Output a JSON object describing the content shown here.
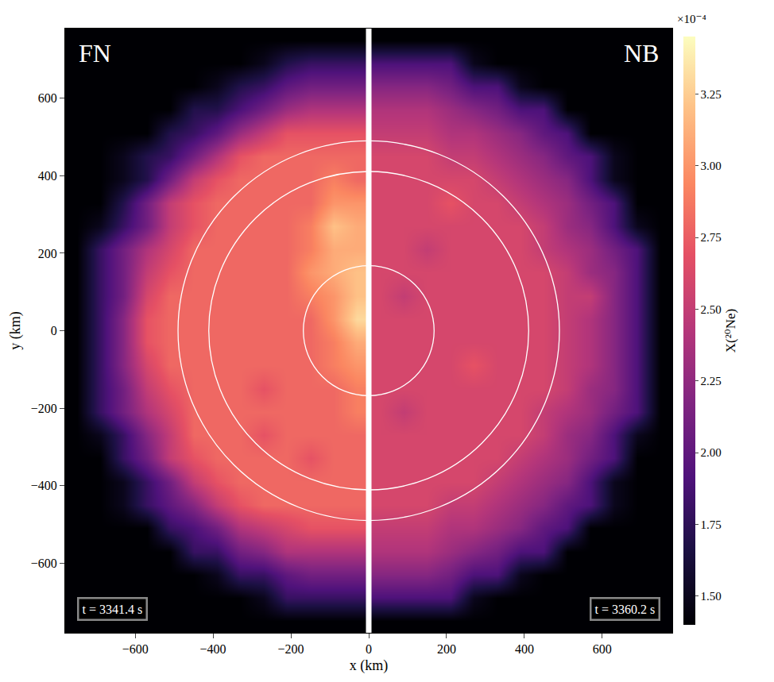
{
  "chart_data": {
    "type": "heatmap",
    "x_label": "x (km)",
    "y_label": "y (km)",
    "xlim": [
      -780,
      780
    ],
    "ylim": [
      -780,
      780
    ],
    "xticks": [
      -600,
      -400,
      -200,
      0,
      200,
      400,
      600
    ],
    "yticks": [
      -600,
      -400,
      -200,
      0,
      200,
      400,
      600
    ],
    "y": [
      -750,
      -690,
      -630,
      -570,
      -510,
      -450,
      -390,
      -330,
      -270,
      -210,
      -150,
      -90,
      -30,
      30,
      90,
      150,
      210,
      270,
      330,
      390,
      450,
      510,
      570,
      630,
      690,
      750
    ],
    "panels": [
      {
        "label": "FN",
        "time_label": "t = 3341.4 s",
        "x": [
          -750,
          -690,
          -630,
          -570,
          -510,
          -450,
          -390,
          -330,
          -270,
          -210,
          -150,
          -90,
          -30
        ],
        "cells": [
          [
            1.4,
            1.4,
            1.4,
            1.4,
            1.4,
            1.4,
            1.4,
            1.4,
            1.4,
            1.4,
            1.4,
            1.4,
            1.4
          ],
          [
            1.4,
            1.4,
            1.4,
            1.4,
            1.4,
            1.4,
            1.4,
            1.4,
            1.5,
            1.8,
            1.8,
            1.8,
            1.8
          ],
          [
            1.4,
            1.4,
            1.4,
            1.4,
            1.4,
            1.4,
            1.5,
            1.8,
            1.8,
            2.0,
            2.1,
            2.1,
            2.1
          ],
          [
            1.4,
            1.4,
            1.4,
            1.4,
            1.4,
            1.8,
            1.8,
            2.1,
            2.2,
            2.4,
            2.4,
            2.4,
            2.4
          ],
          [
            1.4,
            1.4,
            1.4,
            1.4,
            1.8,
            1.9,
            2.1,
            2.4,
            2.5,
            2.6,
            2.7,
            2.7,
            2.7
          ],
          [
            1.4,
            1.4,
            1.5,
            1.8,
            2.0,
            2.2,
            2.5,
            2.7,
            2.8,
            2.8,
            2.8,
            2.8,
            2.8
          ],
          [
            1.4,
            1.4,
            1.5,
            1.8,
            2.1,
            2.5,
            2.7,
            2.8,
            2.8,
            2.8,
            2.8,
            2.8,
            2.8
          ],
          [
            1.4,
            1.4,
            1.8,
            2.1,
            2.5,
            2.7,
            2.8,
            2.8,
            2.8,
            2.8,
            2.7,
            2.8,
            2.8
          ],
          [
            1.4,
            1.5,
            1.8,
            2.2,
            2.5,
            2.8,
            2.8,
            2.8,
            2.7,
            2.8,
            2.8,
            2.8,
            2.8
          ],
          [
            1.4,
            1.8,
            2.1,
            2.4,
            2.6,
            2.8,
            2.8,
            2.8,
            2.8,
            2.8,
            2.8,
            2.8,
            2.9
          ],
          [
            1.4,
            1.8,
            2.1,
            2.5,
            2.7,
            2.8,
            2.8,
            2.8,
            2.7,
            2.8,
            2.8,
            2.8,
            2.9
          ],
          [
            1.4,
            1.8,
            2.2,
            2.6,
            2.8,
            2.8,
            2.8,
            2.8,
            2.8,
            2.8,
            2.8,
            2.9,
            3.0
          ],
          [
            1.4,
            1.8,
            2.2,
            2.7,
            2.8,
            2.8,
            2.8,
            2.8,
            2.8,
            2.8,
            2.8,
            2.9,
            3.1
          ],
          [
            1.4,
            1.8,
            2.2,
            2.7,
            2.8,
            2.8,
            2.8,
            2.8,
            2.8,
            2.8,
            2.8,
            3.0,
            3.3
          ],
          [
            1.4,
            1.8,
            2.1,
            2.6,
            2.8,
            2.8,
            2.8,
            2.8,
            2.8,
            2.8,
            2.9,
            3.0,
            3.2
          ],
          [
            1.4,
            1.8,
            2.1,
            2.5,
            2.7,
            2.8,
            2.8,
            2.8,
            2.8,
            2.8,
            3.0,
            3.1,
            3.2
          ],
          [
            1.4,
            1.8,
            2.1,
            2.4,
            2.6,
            2.8,
            2.8,
            2.8,
            2.8,
            2.8,
            2.9,
            3.1,
            3.1
          ],
          [
            1.4,
            1.5,
            1.8,
            2.1,
            2.5,
            2.7,
            2.8,
            2.8,
            2.8,
            2.8,
            2.9,
            3.2,
            3.1
          ],
          [
            1.4,
            1.4,
            1.7,
            2.1,
            2.5,
            2.7,
            2.8,
            2.8,
            2.8,
            2.8,
            2.8,
            3.0,
            3.0
          ],
          [
            1.4,
            1.4,
            1.5,
            1.7,
            2.1,
            2.5,
            2.7,
            2.8,
            2.8,
            2.8,
            2.8,
            2.9,
            2.8
          ],
          [
            1.4,
            1.4,
            1.5,
            1.7,
            1.8,
            2.1,
            2.4,
            2.7,
            2.8,
            2.8,
            2.8,
            2.8,
            2.8
          ],
          [
            1.4,
            1.4,
            1.4,
            1.4,
            1.7,
            1.8,
            2.0,
            2.3,
            2.5,
            2.7,
            2.7,
            2.7,
            2.7
          ],
          [
            1.4,
            1.4,
            1.4,
            1.4,
            1.4,
            1.7,
            1.7,
            1.9,
            2.1,
            2.3,
            2.4,
            2.4,
            2.4
          ],
          [
            1.4,
            1.4,
            1.4,
            1.4,
            1.4,
            1.4,
            1.5,
            1.7,
            1.8,
            2.0,
            2.1,
            2.1,
            2.1
          ],
          [
            1.4,
            1.4,
            1.4,
            1.4,
            1.4,
            1.4,
            1.4,
            1.4,
            1.5,
            1.7,
            1.8,
            1.8,
            1.8
          ],
          [
            1.4,
            1.4,
            1.4,
            1.4,
            1.4,
            1.4,
            1.4,
            1.4,
            1.4,
            1.4,
            1.4,
            1.4,
            1.4
          ]
        ]
      },
      {
        "label": "NB",
        "time_label": "t = 3360.2 s",
        "x": [
          30,
          90,
          150,
          210,
          270,
          330,
          390,
          450,
          510,
          570,
          630,
          690,
          750
        ],
        "cells": [
          [
            1.4,
            1.4,
            1.4,
            1.4,
            1.4,
            1.4,
            1.4,
            1.4,
            1.4,
            1.4,
            1.4,
            1.4,
            1.4
          ],
          [
            1.9,
            1.9,
            1.9,
            1.9,
            1.5,
            1.4,
            1.4,
            1.4,
            1.4,
            1.4,
            1.4,
            1.4,
            1.4
          ],
          [
            2.2,
            2.2,
            2.2,
            2.1,
            1.9,
            1.9,
            1.5,
            1.4,
            1.4,
            1.4,
            1.4,
            1.4,
            1.4
          ],
          [
            2.4,
            2.4,
            2.4,
            2.3,
            2.2,
            2.1,
            1.9,
            1.9,
            1.4,
            1.4,
            1.4,
            1.4,
            1.4
          ],
          [
            2.5,
            2.5,
            2.5,
            2.4,
            2.4,
            2.3,
            2.2,
            2.0,
            1.9,
            1.4,
            1.4,
            1.4,
            1.4
          ],
          [
            2.6,
            2.6,
            2.6,
            2.5,
            2.5,
            2.4,
            2.3,
            2.2,
            2.0,
            1.9,
            1.5,
            1.4,
            1.4
          ],
          [
            2.6,
            2.6,
            2.6,
            2.6,
            2.6,
            2.5,
            2.4,
            2.3,
            2.2,
            1.9,
            1.5,
            1.4,
            1.4
          ],
          [
            2.6,
            2.6,
            2.6,
            2.6,
            2.6,
            2.6,
            2.5,
            2.4,
            2.3,
            2.1,
            1.9,
            1.4,
            1.4
          ],
          [
            2.6,
            2.6,
            2.6,
            2.6,
            2.6,
            2.6,
            2.6,
            2.5,
            2.3,
            2.2,
            1.9,
            1.5,
            1.4
          ],
          [
            2.6,
            2.5,
            2.6,
            2.6,
            2.6,
            2.6,
            2.6,
            2.5,
            2.4,
            2.3,
            2.1,
            1.9,
            1.4
          ],
          [
            2.6,
            2.6,
            2.6,
            2.6,
            2.6,
            2.6,
            2.6,
            2.6,
            2.5,
            2.3,
            2.2,
            1.9,
            1.4
          ],
          [
            2.6,
            2.6,
            2.6,
            2.6,
            2.7,
            2.6,
            2.6,
            2.6,
            2.5,
            2.4,
            2.2,
            1.9,
            1.4
          ],
          [
            2.6,
            2.6,
            2.6,
            2.6,
            2.6,
            2.6,
            2.6,
            2.6,
            2.5,
            2.4,
            2.2,
            1.9,
            1.4
          ],
          [
            2.6,
            2.6,
            2.6,
            2.6,
            2.6,
            2.6,
            2.6,
            2.6,
            2.5,
            2.4,
            2.2,
            1.9,
            1.4
          ],
          [
            2.6,
            2.5,
            2.6,
            2.6,
            2.6,
            2.6,
            2.6,
            2.6,
            2.5,
            2.5,
            2.2,
            1.9,
            1.4
          ],
          [
            2.6,
            2.6,
            2.6,
            2.6,
            2.6,
            2.6,
            2.6,
            2.6,
            2.5,
            2.3,
            2.2,
            1.9,
            1.4
          ],
          [
            2.6,
            2.6,
            2.5,
            2.6,
            2.6,
            2.6,
            2.6,
            2.5,
            2.4,
            2.3,
            2.1,
            1.9,
            1.4
          ],
          [
            2.6,
            2.6,
            2.6,
            2.6,
            2.6,
            2.6,
            2.6,
            2.5,
            2.3,
            2.2,
            1.9,
            1.5,
            1.4
          ],
          [
            2.6,
            2.6,
            2.6,
            2.7,
            2.6,
            2.6,
            2.5,
            2.4,
            2.3,
            2.1,
            1.9,
            1.4,
            1.4
          ],
          [
            2.6,
            2.6,
            2.6,
            2.6,
            2.6,
            2.5,
            2.4,
            2.3,
            2.2,
            1.9,
            1.5,
            1.4,
            1.4
          ],
          [
            2.6,
            2.6,
            2.6,
            2.5,
            2.5,
            2.4,
            2.3,
            2.2,
            2.0,
            1.9,
            1.5,
            1.4,
            1.4
          ],
          [
            2.5,
            2.5,
            2.5,
            2.4,
            2.4,
            2.3,
            2.2,
            2.0,
            1.9,
            1.4,
            1.4,
            1.4,
            1.4
          ],
          [
            2.4,
            2.4,
            2.4,
            2.3,
            2.2,
            2.1,
            1.9,
            1.9,
            1.4,
            1.4,
            1.4,
            1.4,
            1.4
          ],
          [
            2.2,
            2.2,
            2.2,
            2.1,
            1.9,
            1.9,
            1.5,
            1.4,
            1.4,
            1.4,
            1.4,
            1.4,
            1.4
          ],
          [
            1.9,
            1.9,
            1.9,
            1.9,
            1.5,
            1.4,
            1.4,
            1.4,
            1.4,
            1.4,
            1.4,
            1.4,
            1.4
          ],
          [
            1.4,
            1.4,
            1.4,
            1.4,
            1.4,
            1.4,
            1.4,
            1.4,
            1.4,
            1.4,
            1.4,
            1.4,
            1.4
          ]
        ]
      }
    ],
    "colorbar": {
      "label": "X(²⁰Ne)",
      "exponent_label": "×10⁻⁴",
      "range": [
        1.4,
        3.45
      ],
      "ticks": [
        {
          "value": 1.5,
          "label": "1.50"
        },
        {
          "value": 1.75,
          "label": "1.75"
        },
        {
          "value": 2.0,
          "label": "2.00"
        },
        {
          "value": 2.25,
          "label": "2.25"
        },
        {
          "value": 2.5,
          "label": "2.50"
        },
        {
          "value": 2.75,
          "label": "2.75"
        },
        {
          "value": 3.0,
          "label": "3.00"
        },
        {
          "value": 3.25,
          "label": "3.25"
        }
      ]
    },
    "circles": [
      {
        "radius": 168
      },
      {
        "radius": 411
      },
      {
        "radius": 490
      }
    ],
    "divider_x": 0
  }
}
